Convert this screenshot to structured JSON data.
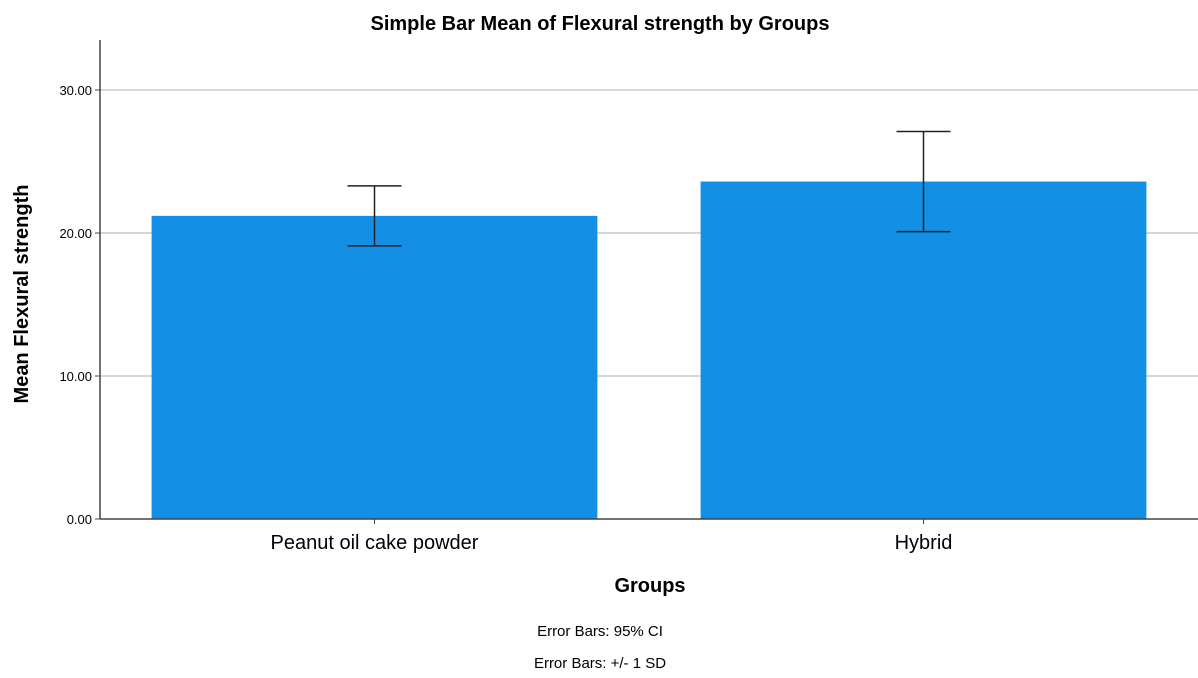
{
  "chart_data": {
    "type": "bar",
    "title": "Simple Bar Mean of Flexural strength by Groups",
    "xlabel": "Groups",
    "ylabel": "Mean Flexural strength",
    "categories": [
      "Peanut oil cake powder",
      "Hybrid"
    ],
    "values": [
      21.2,
      23.6
    ],
    "error_low": [
      19.1,
      20.1
    ],
    "error_high": [
      23.3,
      27.1
    ],
    "ylim": [
      0,
      33.5
    ],
    "yticks": [
      "0.00",
      "10.00",
      "20.00",
      "30.00"
    ],
    "ytick_values": [
      0,
      10,
      20,
      30
    ],
    "grid": true,
    "bar_color": "#138fe6",
    "notes": [
      "Error Bars: 95% CI",
      "Error Bars: +/- 1 SD"
    ]
  }
}
